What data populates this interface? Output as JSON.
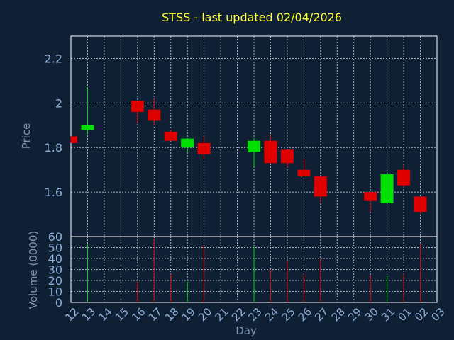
{
  "chart_data": {
    "type": "candlestick",
    "title": "STSS - last updated 02/04/2026",
    "xlabel": "Day",
    "ylabel": "Price",
    "volume_label": "Volume (0000)",
    "x_ticks": [
      "12",
      "13",
      "14",
      "15",
      "16",
      "17",
      "18",
      "19",
      "20",
      "21",
      "22",
      "23",
      "24",
      "25",
      "26",
      "27",
      "28",
      "29",
      "30",
      "31",
      "01",
      "02",
      "03"
    ],
    "price_ticks": [
      "1.6",
      "1.8",
      "2",
      "2.2"
    ],
    "price_tick_values": [
      1.6,
      1.8,
      2.0,
      2.2
    ],
    "price_ylim": [
      1.4,
      2.3
    ],
    "volume_ticks": [
      "0",
      "10",
      "20",
      "30",
      "40",
      "50",
      "60"
    ],
    "volume_ylim": [
      0,
      60
    ],
    "grid": true,
    "candles": [
      {
        "day": "12",
        "open": 1.85,
        "high": 1.85,
        "low": 1.82,
        "close": 1.82,
        "volume": 0
      },
      {
        "day": "13",
        "open": 1.88,
        "high": 2.07,
        "low": 1.86,
        "close": 1.9,
        "volume": 53
      },
      {
        "day": "16",
        "open": 2.01,
        "high": 2.01,
        "low": 1.91,
        "close": 1.96,
        "volume": 19
      },
      {
        "day": "17",
        "open": 1.97,
        "high": 2.02,
        "low": 1.9,
        "close": 1.92,
        "volume": 58
      },
      {
        "day": "18",
        "open": 1.87,
        "high": 1.88,
        "low": 1.83,
        "close": 1.83,
        "volume": 26
      },
      {
        "day": "19",
        "open": 1.8,
        "high": 1.84,
        "low": 1.78,
        "close": 1.84,
        "volume": 19
      },
      {
        "day": "20",
        "open": 1.82,
        "high": 1.85,
        "low": 1.75,
        "close": 1.77,
        "volume": 52
      },
      {
        "day": "23",
        "open": 1.78,
        "high": 1.84,
        "low": 1.71,
        "close": 1.83,
        "volume": 51
      },
      {
        "day": "24",
        "open": 1.83,
        "high": 1.86,
        "low": 1.73,
        "close": 1.73,
        "volume": 30
      },
      {
        "day": "25",
        "open": 1.79,
        "high": 1.79,
        "low": 1.71,
        "close": 1.73,
        "volume": 38
      },
      {
        "day": "26",
        "open": 1.7,
        "high": 1.75,
        "low": 1.67,
        "close": 1.67,
        "volume": 26
      },
      {
        "day": "27",
        "open": 1.67,
        "high": 1.67,
        "low": 1.55,
        "close": 1.58,
        "volume": 40
      },
      {
        "day": "30",
        "open": 1.6,
        "high": 1.6,
        "low": 1.51,
        "close": 1.56,
        "volume": 25
      },
      {
        "day": "31",
        "open": 1.55,
        "high": 1.69,
        "low": 1.55,
        "close": 1.68,
        "volume": 24
      },
      {
        "day": "01",
        "open": 1.7,
        "high": 1.72,
        "low": 1.62,
        "close": 1.63,
        "volume": 26
      },
      {
        "day": "02",
        "open": 1.58,
        "high": 1.58,
        "low": 1.5,
        "close": 1.51,
        "volume": 54
      }
    ]
  },
  "colors": {
    "background": "#0f2035",
    "frame": "#ffffff",
    "grid": "#a8b4c4",
    "title": "#ffff33",
    "axis_text": "#8fb0d8",
    "axis_title": "#7f97b4",
    "up": "#00e000",
    "down": "#e00000"
  }
}
